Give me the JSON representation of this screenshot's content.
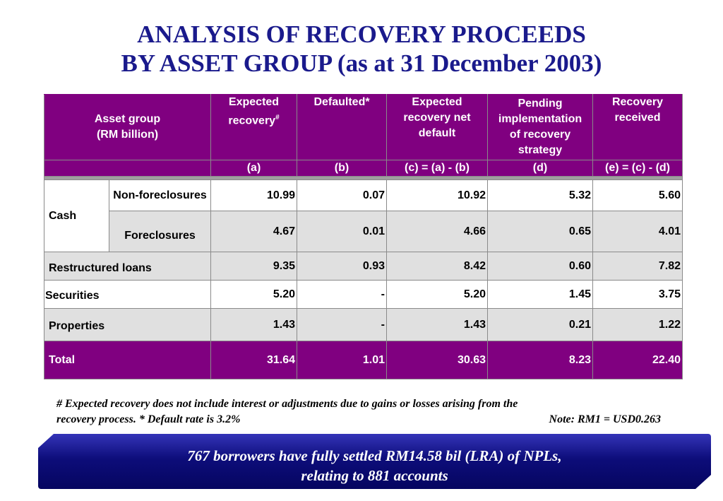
{
  "title": {
    "line1": "ANALYSIS OF RECOVERY PROCEEDS",
    "line2_bold": "BY ASSET GROUP (",
    "line2_rest": "as at 31 December 2003)"
  },
  "table": {
    "header": {
      "asset_group": "Asset group",
      "unit": "(RM billion)",
      "expected_recovery_1": "Expected",
      "expected_recovery_2": "recovery",
      "expected_recovery_sup": "#",
      "defaulted": "Defaulted*",
      "net_default_1": "Expected",
      "net_default_2": "recovery net",
      "net_default_3": "default",
      "pending_1": "Pending",
      "pending_2": "implementation",
      "pending_3": "of recovery",
      "pending_4": "strategy",
      "received_1": "Recovery",
      "received_2": "received",
      "code_a": "(a)",
      "code_b": "(b)",
      "code_c": "(c) = (a) - (b)",
      "code_d": "(d)",
      "code_e": "(e) = (c) - (d)"
    },
    "cash_label": "Cash",
    "rows": [
      {
        "label": "Non-foreclosures",
        "a": "10.99",
        "b": "0.07",
        "c": "10.92",
        "d": "5.32",
        "e": "5.60"
      },
      {
        "label": "Foreclosures",
        "a": "4.67",
        "b": "0.01",
        "c": "4.66",
        "d": "0.65",
        "e": "4.01"
      },
      {
        "label": "Restructured loans",
        "a": "9.35",
        "b": "0.93",
        "c": "8.42",
        "d": "0.60",
        "e": "7.82"
      },
      {
        "label": "Securities",
        "a": "5.20",
        "b": "-",
        "c": "5.20",
        "d": "1.45",
        "e": "3.75"
      },
      {
        "label": "Properties",
        "a": "1.43",
        "b": "-",
        "c": "1.43",
        "d": "0.21",
        "e": "1.22"
      },
      {
        "label": "Total",
        "a": "31.64",
        "b": "1.01",
        "c": "30.63",
        "d": "8.23",
        "e": "22.40"
      }
    ]
  },
  "footnote": {
    "line1": "# Expected recovery does not include interest or adjustments due to gains or losses arising from the",
    "line2": "recovery process. * Default rate is 3.2%",
    "note": "Note: RM1 = USD0.263"
  },
  "banner": {
    "line1": "767 borrowers have fully settled RM14.58 bil (LRA) of NPLs,",
    "line2": "relating to 881 accounts"
  }
}
